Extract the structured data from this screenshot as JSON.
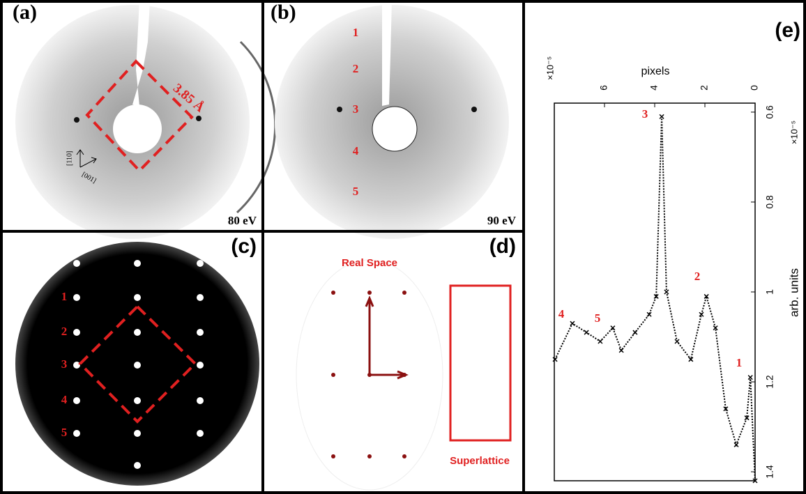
{
  "panels": {
    "a": {
      "label": "(a)",
      "lattice": "3.85 Å",
      "dir1": "[110]",
      "dir2": "[001]",
      "energy": "80 eV"
    },
    "b": {
      "label": "(b)",
      "spots": [
        "1",
        "2",
        "3",
        "4",
        "5"
      ],
      "energy": "90 eV"
    },
    "c": {
      "label": "(c)",
      "spots": [
        "1",
        "2",
        "3",
        "4",
        "5"
      ]
    },
    "d": {
      "label": "(d)",
      "real": "Real Space",
      "super": "Superlattice"
    },
    "e": {
      "label": "(e)",
      "peaks": [
        "1",
        "2",
        "3",
        "4",
        "5"
      ]
    }
  },
  "chart_data": {
    "type": "line",
    "xlabel": "pixels",
    "ylabel": "arb. units",
    "x_multiplier": "×10⁻⁵",
    "y_multiplier": "×10⁻⁵",
    "color": "#000000",
    "x": [
      7.97,
      7.28,
      6.72,
      6.17,
      5.67,
      5.33,
      4.78,
      4.22,
      3.94,
      3.72,
      3.53,
      3.11,
      2.56,
      2.14,
      1.94,
      1.58,
      1.17,
      0.75,
      0.33,
      0.19,
      0
    ],
    "values": [
      1.15,
      1.07,
      1.09,
      1.11,
      1.08,
      1.13,
      1.09,
      1.05,
      1.01,
      0.61,
      1.0,
      1.11,
      1.15,
      1.05,
      1.01,
      1.08,
      1.26,
      1.34,
      1.28,
      1.19,
      1.42
    ],
    "xlim": [
      8,
      0
    ],
    "ylim": [
      0.58,
      1.42
    ],
    "xticks": [
      6,
      4,
      2,
      0
    ],
    "yticks": [
      0.6,
      0.8,
      1,
      1.2,
      1.4
    ]
  }
}
